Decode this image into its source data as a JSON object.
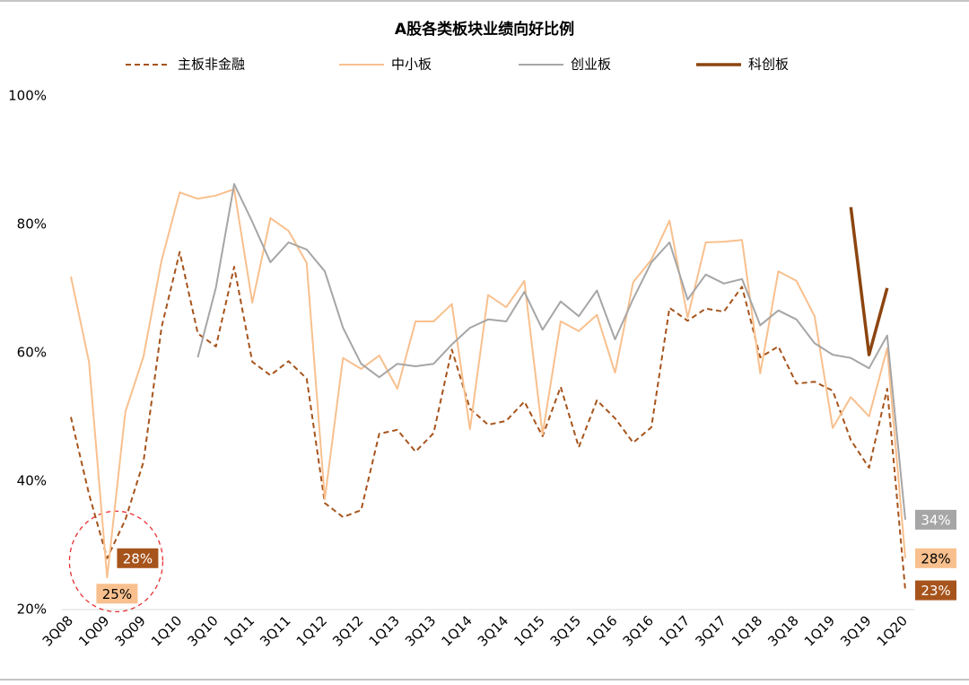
{
  "chart_data": {
    "type": "line",
    "title": "A股各类板块业绩向好比例",
    "categories": [
      "3Q08",
      null,
      "1Q09",
      null,
      "3Q09",
      null,
      "1Q10",
      null,
      "3Q10",
      null,
      "1Q11",
      null,
      "3Q11",
      null,
      "1Q12",
      null,
      "3Q12",
      null,
      "1Q13",
      null,
      "3Q13",
      null,
      "1Q14",
      null,
      "3Q14",
      null,
      "1Q15",
      null,
      "3Q15",
      null,
      "1Q16",
      null,
      "3Q16",
      null,
      "1Q17",
      null,
      "3Q17",
      null,
      "1Q18",
      null,
      "3Q18",
      null,
      "1Q19",
      null,
      "3Q19",
      null,
      "1Q20"
    ],
    "ylim": [
      20,
      100
    ],
    "yticks": [
      {
        "value": 20,
        "label": "20%"
      },
      {
        "value": 40,
        "label": "40%"
      },
      {
        "value": 60,
        "label": "60%"
      },
      {
        "value": 80,
        "label": "80%"
      },
      {
        "value": 100,
        "label": "100%"
      }
    ],
    "legend": "top",
    "series": [
      {
        "name": "主板非金融",
        "color": "#a6541c",
        "line_style": "dashed",
        "linewidth": 2,
        "values": [
          50,
          38,
          28,
          34,
          43,
          64,
          75.7,
          63,
          61,
          73.4,
          58.6,
          56.5,
          58.7,
          56,
          36.6,
          34.4,
          35.5,
          47.4,
          48,
          44.6,
          47.5,
          60.5,
          51.3,
          48.8,
          49.4,
          52.4,
          47,
          54.7,
          45.3,
          52.6,
          49.8,
          46,
          48.4,
          67,
          65,
          66.9,
          66.4,
          70.3,
          59.3,
          61,
          55.2,
          55.5,
          54.1,
          46.4,
          42.1,
          54.4,
          23
        ],
        "value_labels": [
          null,
          null,
          "28%",
          null,
          null,
          null,
          null,
          null,
          null,
          null,
          null,
          null,
          null,
          null,
          null,
          null,
          null,
          null,
          null,
          null,
          null,
          null,
          null,
          null,
          null,
          null,
          null,
          null,
          null,
          null,
          null,
          null,
          null,
          null,
          null,
          null,
          null,
          null,
          null,
          null,
          null,
          null,
          null,
          null,
          null,
          null,
          "23%"
        ]
      },
      {
        "name": "中小板",
        "color": "#f8c08e",
        "line_style": "solid",
        "linewidth": 2,
        "values": [
          71.9,
          58.6,
          25,
          50.8,
          59.4,
          74.4,
          85,
          84,
          84.5,
          85.5,
          67.8,
          81,
          79,
          74,
          37.2,
          59.2,
          57.5,
          59.6,
          54.4,
          64.9,
          64.9,
          67.6,
          48.1,
          69,
          67.1,
          71.2,
          47.3,
          64.9,
          63.4,
          65.9,
          56.9,
          71,
          74.5,
          80.6,
          65.5,
          77.2,
          77.3,
          77.6,
          56.8,
          72.7,
          71.2,
          65.7,
          48.3,
          53.1,
          50.1,
          60.7,
          28
        ],
        "value_labels": [
          null,
          null,
          "25%",
          null,
          null,
          null,
          null,
          null,
          null,
          null,
          null,
          null,
          null,
          null,
          null,
          null,
          null,
          null,
          null,
          null,
          null,
          null,
          null,
          null,
          null,
          null,
          null,
          null,
          null,
          null,
          null,
          null,
          null,
          null,
          null,
          null,
          null,
          null,
          null,
          null,
          null,
          null,
          null,
          null,
          null,
          null,
          "28%"
        ]
      },
      {
        "name": "创业板",
        "color": "#a6a6a6",
        "line_style": "solid",
        "linewidth": 2,
        "values": [
          null,
          null,
          null,
          null,
          null,
          null,
          null,
          59.3,
          70.2,
          86.3,
          80.4,
          74.1,
          77.2,
          76.1,
          72.7,
          63.9,
          58.3,
          56.2,
          58.3,
          57.9,
          58.3,
          61.3,
          63.9,
          65.2,
          64.9,
          69.5,
          63.6,
          68,
          65.7,
          69.7,
          62.1,
          68.4,
          74.1,
          77.2,
          68.3,
          72.2,
          70.8,
          71.5,
          64.3,
          66.6,
          65.2,
          61.5,
          59.7,
          59.2,
          57.6,
          62.7,
          34
        ],
        "value_labels": [
          null,
          null,
          null,
          null,
          null,
          null,
          null,
          null,
          null,
          null,
          null,
          null,
          null,
          null,
          null,
          null,
          null,
          null,
          null,
          null,
          null,
          null,
          null,
          null,
          null,
          null,
          null,
          null,
          null,
          null,
          null,
          null,
          null,
          null,
          null,
          null,
          null,
          null,
          null,
          null,
          null,
          null,
          null,
          null,
          null,
          null,
          "34%"
        ]
      },
      {
        "name": "科创板",
        "color": "#8c4510",
        "line_style": "solid",
        "linewidth": 3.5,
        "values": [
          null,
          null,
          null,
          null,
          null,
          null,
          null,
          null,
          null,
          null,
          null,
          null,
          null,
          null,
          null,
          null,
          null,
          null,
          null,
          null,
          null,
          null,
          null,
          null,
          null,
          null,
          null,
          null,
          null,
          null,
          null,
          null,
          null,
          null,
          null,
          null,
          null,
          null,
          null,
          null,
          null,
          null,
          null,
          82.7,
          59.7,
          70.1,
          null
        ]
      }
    ]
  }
}
